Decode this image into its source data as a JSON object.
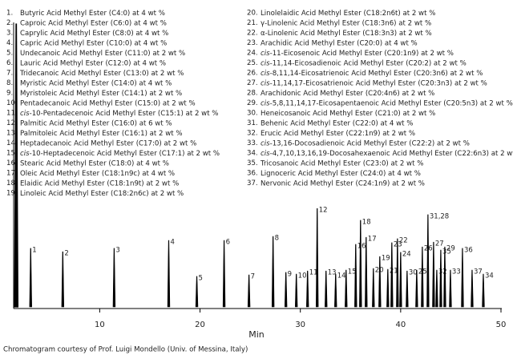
{
  "chart_data": {
    "type": "chromatogram",
    "x_label": "Min",
    "xlim": [
      1.5,
      50
    ],
    "xticks": [
      10,
      20,
      30,
      40,
      50
    ],
    "ylim": [
      0,
      100
    ],
    "x": [
      1.68,
      3.12,
      6.32,
      11.44,
      16.88,
      19.68,
      22.4,
      24.88,
      27.28,
      28.56,
      29.6,
      30.72,
      31.68,
      32.56,
      33.52,
      34.56,
      35.52,
      36.0,
      36.56,
      37.28,
      37.92,
      38.72,
      39.12,
      39.68,
      40.0,
      40.64,
      41.6,
      42.16,
      42.72,
      43.28,
      43.6,
      44.0,
      44.4,
      44.96,
      46.16,
      47.12,
      48.24
    ],
    "values": [
      100,
      20.7,
      19.5,
      20.7,
      23.5,
      10.8,
      23.5,
      11.3,
      24.9,
      12.2,
      11.6,
      12.7,
      34.8,
      12.7,
      11.6,
      13.0,
      22.1,
      30.6,
      24.6,
      13.6,
      17.8,
      13.3,
      22.7,
      24.1,
      19.3,
      12.7,
      13.0,
      21.2,
      32.6,
      22.9,
      13.0,
      20.1,
      21.2,
      13.0,
      20.7,
      13.0,
      11.6
    ],
    "peak_labels": [
      null,
      "1",
      "2",
      "3",
      "4",
      "5",
      "6",
      "7",
      "8",
      "9",
      "10",
      "11",
      "12",
      "13",
      "14",
      "15",
      "16",
      "18",
      "17",
      "20",
      "19",
      "21",
      "23",
      "22",
      "24",
      "30",
      "25",
      "26",
      "31,28",
      "27",
      "32",
      "35",
      "29",
      "33",
      "36",
      "37",
      "34"
    ],
    "color": "#000000"
  },
  "compounds": [
    {
      "number": "1.",
      "name": "Butyric Acid Methyl Ester (C4:0) at 4 wt %"
    },
    {
      "number": "2.",
      "name": "Caproic Acid Methyl Ester (C6:0) at 4 wt %"
    },
    {
      "number": "3.",
      "name": "Caprylic Acid Methyl Ester (C8:0) at 4 wt %"
    },
    {
      "number": "4.",
      "name": "Capric Acid Methyl Ester (C10:0) at 4 wt %"
    },
    {
      "number": "5.",
      "name": "Undecanoic Acid Methyl Ester (C11:0) at 2 wt %"
    },
    {
      "number": "6.",
      "name": "Lauric Acid Methyl Ester (C12:0) at 4 wt %"
    },
    {
      "number": "7.",
      "name": "Tridecanoic Acid Methyl Ester (C13:0) at 2 wt %"
    },
    {
      "number": "8.",
      "name": "Myristic Acid Methyl Ester (C14:0) at 4 wt %"
    },
    {
      "number": "9.",
      "name": "Myristoleic Acid Methyl Ester (C14:1) at 2 wt %"
    },
    {
      "number": "10.",
      "name": "Pentadecanoic Acid Methyl Ester (C15:0) at 2 wt %"
    },
    {
      "number": "11.",
      "name": "cis-10-Pentadecenoic Acid Methyl Ester (C15:1) at 2 wt %"
    },
    {
      "number": "12.",
      "name": "Palmitic Acid Methyl Ester (C16:0) at 6 wt %"
    },
    {
      "number": "13.",
      "name": "Palmitoleic Acid Methyl Ester (C16:1) at 2 wt %"
    },
    {
      "number": "14.",
      "name": "Heptadecanoic Acid Methyl Ester (C17:0) at 2 wt %"
    },
    {
      "number": "15.",
      "name": "cis-10-Heptadecenoic Acid Methyl Ester (C17:1) at 2 wt %"
    },
    {
      "number": "16.",
      "name": "Stearic Acid Methyl Ester (C18:0) at 4 wt %"
    },
    {
      "number": "17.",
      "name": "Oleic Acid Methyl Ester (C18:1n9c) at 4 wt %"
    },
    {
      "number": "18.",
      "name": "Elaidic Acid Methyl Ester (C18:1n9t) at 2 wt %"
    },
    {
      "number": "19.",
      "name": "Linoleic Acid Methyl Ester (C18:2n6c) at 2 wt %"
    },
    {
      "number": "20.",
      "name": "Linolelaidic Acid Methyl Ester (C18:2n6t) at 2 wt %"
    },
    {
      "number": "21.",
      "name": "γ-Linolenic Acid Methyl Ester (C18:3n6) at 2 wt %"
    },
    {
      "number": "22.",
      "name": "α-Linolenic Acid Methyl Ester (C18:3n3) at 2 wt %"
    },
    {
      "number": "23.",
      "name": "Arachidic Acid Methyl Ester (C20:0) at 4 wt %"
    },
    {
      "number": "24.",
      "name": "cis-11-Eicosenoic Acid Methyl Ester (C20:1n9) at 2 wt %"
    },
    {
      "number": "25.",
      "name": "cis-11,14-Eicosadienoic Acid Methyl Ester (C20:2) at 2 wt %"
    },
    {
      "number": "26.",
      "name": "cis-8,11,14-Eicosatrienoic Acid Methyl Ester (C20:3n6) at 2 wt %"
    },
    {
      "number": "27.",
      "name": "cis-11,14,17-Eicosatrienoic Acid Methyl Ester (C20:3n3) at 2 wt %"
    },
    {
      "number": "28.",
      "name": "Arachidonic Acid Methyl Ester (C20:4n6) at 2 wt %"
    },
    {
      "number": "29.",
      "name": "cis-5,8,11,14,17-Eicosapentaenoic Acid Methyl Ester (C20:5n3) at 2 wt %"
    },
    {
      "number": "30.",
      "name": "Heneicosanoic Acid Methyl Ester (C21:0) at 2 wt %"
    },
    {
      "number": "31.",
      "name": "Behenic Acid Methyl Ester (C22:0) at 4 wt %"
    },
    {
      "number": "32.",
      "name": "Erucic Acid Methyl Ester (C22:1n9) at 2 wt %"
    },
    {
      "number": "33.",
      "name": "cis-13,16-Docosadienoic Acid Methyl Ester (C22:2) at 2 wt %"
    },
    {
      "number": "34.",
      "name": "cis-4,7,10,13,16,19-Docosahexaenoic Acid Methyl Ester (C22:6n3) at 2 wt %"
    },
    {
      "number": "35.",
      "name": "Tricosanoic Acid Methyl Ester (C23:0) at 2 wt %"
    },
    {
      "number": "36.",
      "name": "Lignoceric Acid Methyl Ester (C24:0) at 4 wt %"
    },
    {
      "number": "37.",
      "name": "Nervonic Acid Methyl Ester (C24:1n9) at 2 wt %"
    }
  ],
  "credit": "Chromatogram courtesy of Prof. Luigi Mondello (Univ. of Messina, Italy)"
}
